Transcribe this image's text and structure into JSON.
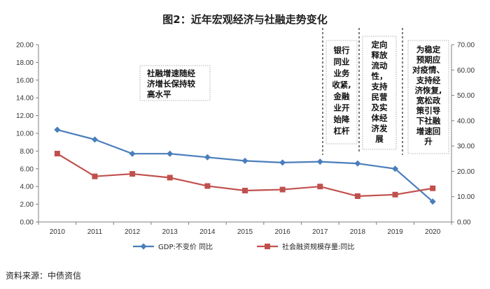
{
  "chart_data": {
    "type": "line",
    "title": "图2：近年宏观经济与社融走势变化",
    "categories": [
      "2010",
      "2011",
      "2012",
      "2013",
      "2014",
      "2015",
      "2016",
      "2017",
      "2018",
      "2019",
      "2020"
    ],
    "series": [
      {
        "name": "GDP:不变价 同比",
        "axis": "left",
        "color": "#4a7ebb",
        "marker": "diamond",
        "values": [
          10.4,
          9.3,
          7.7,
          7.7,
          7.3,
          6.9,
          6.7,
          6.8,
          6.6,
          6.0,
          2.3
        ]
      },
      {
        "name": "社会融资规模存量:同比",
        "axis": "right",
        "color": "#c0504d",
        "marker": "square",
        "values": [
          27.0,
          18.0,
          19.0,
          17.5,
          14.2,
          12.4,
          12.8,
          14.0,
          10.2,
          10.8,
          13.3
        ]
      }
    ],
    "y_left": {
      "min": 0,
      "max": 20,
      "step": 2,
      "tick_labels": [
        "0.00",
        "2.00",
        "4.00",
        "6.00",
        "8.00",
        "10.00",
        "12.00",
        "14.00",
        "16.00",
        "18.00",
        "20.00"
      ]
    },
    "y_right": {
      "min": 0,
      "max": 70,
      "step": 10,
      "tick_labels": [
        "0.00",
        "10.00",
        "20.00",
        "30.00",
        "40.00",
        "50.00",
        "60.00",
        "70.00"
      ]
    },
    "grid": false,
    "legend": "bottom",
    "annotations": [
      {
        "id": "anno-1",
        "lines": [
          "社融增速随经",
          "济增长保持较",
          "高水平"
        ]
      },
      {
        "id": "anno-2",
        "lines": [
          "银行",
          "同业",
          "业务",
          "收紧,",
          "金融",
          "业开",
          "始降",
          "杠杆"
        ]
      },
      {
        "id": "anno-3",
        "lines": [
          "定向",
          "释放",
          "流动",
          "性，",
          "支持",
          "民营",
          "及实",
          "体经",
          "济发",
          "展"
        ]
      },
      {
        "id": "anno-4",
        "lines": [
          "为稳定",
          "预期应",
          "对疫情、",
          "支持经",
          "济恢复,",
          "宽松政",
          "策引导",
          "下社融",
          "增速回",
          "升"
        ]
      }
    ]
  },
  "source": "资料来源：中债资信"
}
